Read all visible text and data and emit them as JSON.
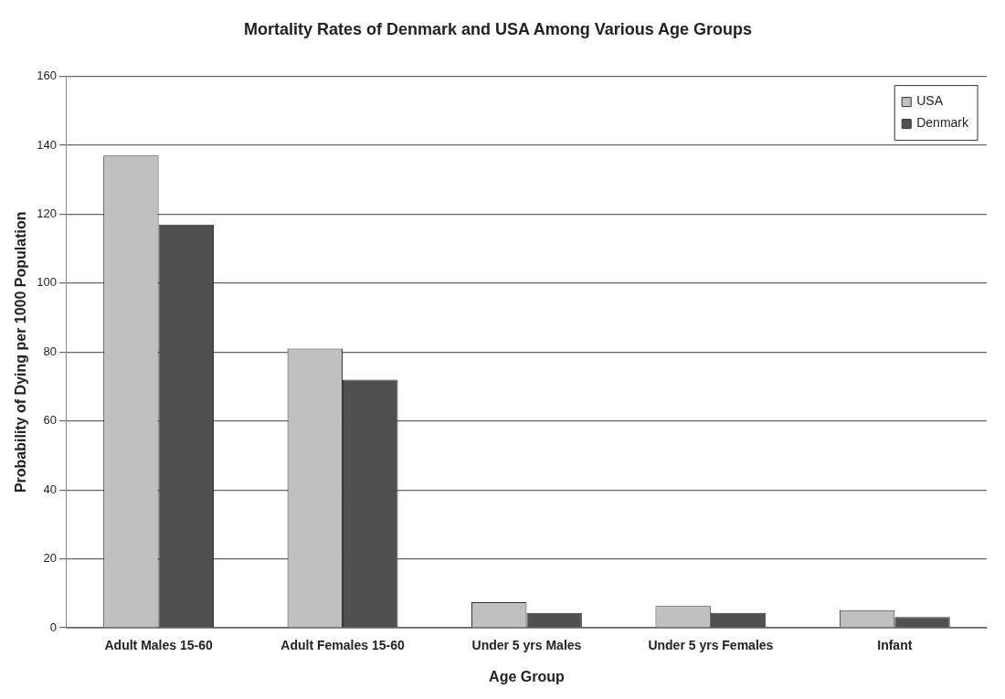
{
  "chart_data": {
    "type": "bar",
    "title": "Mortality Rates of Denmark and USA Among Various Age Groups",
    "xlabel": "Age Group",
    "ylabel": "Probability of Dying per 1000 Population",
    "categories": [
      "Adult Males 15-60",
      "Adult Females 15-60",
      "Under 5 yrs Males",
      "Under 5 yrs Females",
      "Infant"
    ],
    "series": [
      {
        "name": "USA",
        "color": "#c0c0c0",
        "values": [
          137,
          81,
          7.4,
          6.3,
          5.1
        ]
      },
      {
        "name": "Denmark",
        "color": "#505050",
        "values": [
          117,
          72,
          4.3,
          4.3,
          3.1
        ]
      }
    ],
    "ylim": [
      0,
      160
    ],
    "yticks": [
      0,
      20,
      40,
      60,
      80,
      100,
      120,
      140,
      160
    ],
    "grid": "y",
    "legend": "top right"
  }
}
